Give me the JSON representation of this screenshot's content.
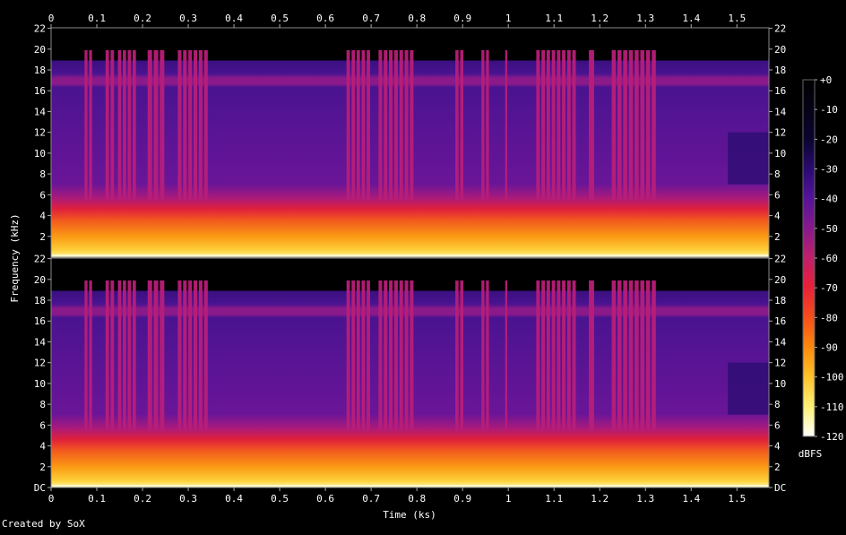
{
  "credit": "Created by SoX",
  "chart_data": {
    "type": "heatmap",
    "xlabel": "Time (ks)",
    "ylabel": "Frequency (kHz)",
    "xlim": [
      0,
      1.57
    ],
    "ylim": [
      0,
      22.05
    ],
    "x_ticks": [
      "0",
      "0.1",
      "0.2",
      "0.3",
      "0.4",
      "0.5",
      "0.6",
      "0.7",
      "0.8",
      "0.9",
      "1",
      "1.1",
      "1.2",
      "1.3",
      "1.4",
      "1.5"
    ],
    "y_ticks_top": [
      "22",
      "20",
      "18",
      "16",
      "14",
      "12",
      "10",
      "8",
      "6",
      "4",
      "2"
    ],
    "y_ticks_bottom": [
      "22",
      "20",
      "18",
      "16",
      "14",
      "12",
      "10",
      "8",
      "6",
      "4",
      "2",
      "DC"
    ],
    "channels": 2,
    "colorbar": {
      "label": "dBFS",
      "ticks": [
        "+0",
        "-10",
        "-20",
        "-30",
        "-40",
        "-50",
        "-60",
        "-70",
        "-80",
        "-90",
        "-100",
        "-110",
        "-120"
      ],
      "range": [
        -120,
        0
      ],
      "colors": [
        "#000000",
        "#0b0530",
        "#2a0a70",
        "#55139a",
        "#8a1a8a",
        "#c0206a",
        "#e8203a",
        "#f5501a",
        "#fb8a0e",
        "#fdc12a",
        "#fef27a",
        "#ffffff"
      ]
    },
    "bursts_ks": [
      [
        0.072,
        0.092
      ],
      [
        0.118,
        0.14
      ],
      [
        0.145,
        0.188
      ],
      [
        0.21,
        0.25
      ],
      [
        0.276,
        0.345
      ],
      [
        0.645,
        0.7
      ],
      [
        0.715,
        0.795
      ],
      [
        0.883,
        0.904
      ],
      [
        0.94,
        0.96
      ],
      [
        0.992,
        1.0
      ],
      [
        1.06,
        1.15
      ],
      [
        1.175,
        1.19
      ],
      [
        1.225,
        1.3
      ],
      [
        1.3,
        1.325
      ]
    ],
    "band_levels_dbfs": [
      {
        "f_khz": [
          0,
          0.5
        ],
        "db": -8
      },
      {
        "f_khz": [
          0.5,
          2
        ],
        "db": -25
      },
      {
        "f_khz": [
          2,
          4
        ],
        "db": -32
      },
      {
        "f_khz": [
          4,
          6
        ],
        "db": -52
      },
      {
        "f_khz": [
          6,
          16.5
        ],
        "db": -80
      },
      {
        "f_khz": [
          16.5,
          17.2
        ],
        "db": -68
      },
      {
        "f_khz": [
          17.2,
          18.8
        ],
        "db": -80
      },
      {
        "f_khz": [
          18.8,
          22.05
        ],
        "db": -120
      }
    ],
    "burst_level_dbfs": -62
  }
}
